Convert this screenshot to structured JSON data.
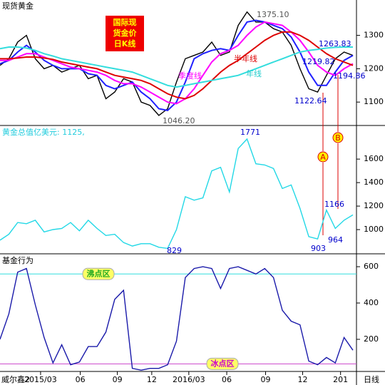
{
  "chart_data": [
    {
      "type": "line",
      "title": "现货黄金",
      "label_box": [
        "国际现",
        "货金价",
        "日K线"
      ],
      "annotations": [
        "1375.10",
        "1046.20",
        "1263.83",
        "1219.82",
        "1194.86",
        "1122.64",
        "半年线",
        "季度线",
        "年线"
      ],
      "markers": [
        "A",
        "B"
      ],
      "xlim": [
        0,
        40
      ],
      "ylim": [
        1032,
        1406
      ],
      "yticks": [
        1100,
        1200,
        1300
      ],
      "series": [
        {
          "color": "#000000",
          "values": [
            1210,
            1230,
            1280,
            1300,
            1230,
            1200,
            1210,
            1190,
            1200,
            1210,
            1170,
            1180,
            1110,
            1130,
            1170,
            1160,
            1100,
            1090,
            1060,
            1080,
            1160,
            1230,
            1240,
            1250,
            1280,
            1240,
            1250,
            1330,
            1370,
            1340,
            1340,
            1320,
            1310,
            1270,
            1200,
            1140,
            1130,
            1180,
            1230,
            1250,
            1240
          ]
        },
        {
          "color": "#2020ff",
          "values": [
            1215,
            1225,
            1250,
            1270,
            1250,
            1225,
            1210,
            1200,
            1200,
            1200,
            1185,
            1180,
            1150,
            1140,
            1150,
            1160,
            1130,
            1110,
            1080,
            1075,
            1100,
            1160,
            1230,
            1245,
            1255,
            1260,
            1255,
            1300,
            1340,
            1345,
            1340,
            1330,
            1320,
            1295,
            1250,
            1190,
            1150,
            1150,
            1190,
            1225,
            1240
          ]
        },
        {
          "color": "#ff00ff",
          "values": [
            1225,
            1225,
            1235,
            1245,
            1245,
            1235,
            1225,
            1215,
            1205,
            1200,
            1195,
            1190,
            1180,
            1165,
            1155,
            1155,
            1145,
            1130,
            1115,
            1100,
            1095,
            1110,
            1140,
            1180,
            1220,
            1245,
            1255,
            1270,
            1300,
            1325,
            1340,
            1335,
            1330,
            1310,
            1285,
            1250,
            1210,
            1190,
            1180,
            1200,
            1215
          ]
        },
        {
          "color": "#dd0000",
          "values": [
            1230,
            1230,
            1232,
            1235,
            1235,
            1232,
            1228,
            1220,
            1215,
            1210,
            1205,
            1200,
            1190,
            1180,
            1175,
            1170,
            1165,
            1155,
            1140,
            1125,
            1115,
            1110,
            1120,
            1140,
            1165,
            1190,
            1210,
            1225,
            1245,
            1265,
            1285,
            1300,
            1310,
            1310,
            1300,
            1285,
            1265,
            1245,
            1230,
            1220,
            1210
          ]
        },
        {
          "color": "#33dddd",
          "values": [
            1260,
            1265,
            1265,
            1262,
            1255,
            1245,
            1238,
            1230,
            1225,
            1220,
            1215,
            1210,
            1205,
            1200,
            1195,
            1190,
            1180,
            1170,
            1160,
            1150,
            1145,
            1150,
            1155,
            1160,
            1165,
            1170,
            1175,
            1180,
            1190,
            1200,
            1210,
            1220,
            1230,
            1240,
            1250,
            1255,
            1258,
            1262,
            1264,
            1265,
            1265
          ]
        }
      ]
    },
    {
      "type": "line",
      "title": "黄金总值亿美元: 1125,",
      "annotations": [
        "1771",
        "829",
        "1166",
        "903",
        "964"
      ],
      "xlim": [
        0,
        40
      ],
      "ylim": [
        800,
        1880
      ],
      "yticks": [
        1000,
        1200,
        1400,
        1600
      ],
      "series": [
        {
          "color": "#22d8e6",
          "values": [
            910,
            960,
            1060,
            1050,
            1080,
            980,
            1000,
            1010,
            1060,
            990,
            1080,
            1010,
            950,
            960,
            890,
            860,
            880,
            880,
            850,
            840,
            1000,
            1280,
            1250,
            1270,
            1500,
            1530,
            1320,
            1690,
            1771,
            1560,
            1550,
            1520,
            1350,
            1380,
            1180,
            940,
            920,
            1166,
            1010,
            1080,
            1125
          ]
        }
      ]
    },
    {
      "type": "line",
      "title": "基金行为",
      "xlim": [
        0,
        40
      ],
      "ylim": [
        27,
        667
      ],
      "yticks": [
        200,
        400,
        600
      ],
      "xticks": [
        {
          "value": 4.6,
          "label": "2015/03"
        },
        {
          "value": 9.1,
          "label": "06"
        },
        {
          "value": 13.3,
          "label": "09"
        },
        {
          "value": 17.2,
          "label": "12"
        },
        {
          "value": 21.4,
          "label": "2016/03"
        },
        {
          "value": 25.7,
          "label": "06"
        },
        {
          "value": 30.1,
          "label": "09"
        },
        {
          "value": 34.3,
          "label": "12"
        },
        {
          "value": 38.6,
          "label": "201"
        }
      ],
      "footer": [
        "威尔鑫2",
        "日线"
      ],
      "reference_lines": [
        {
          "label": "沸点区",
          "value": 560,
          "color": "#33dddd"
        },
        {
          "label": "冰点区",
          "value": 65,
          "color": "#cc44cc"
        }
      ],
      "series": [
        {
          "color": "#1a1aaa",
          "values": [
            200,
            340,
            570,
            590,
            390,
            210,
            70,
            170,
            60,
            75,
            160,
            160,
            240,
            420,
            470,
            40,
            30,
            40,
            40,
            60,
            190,
            540,
            590,
            600,
            590,
            480,
            590,
            600,
            580,
            560,
            590,
            540,
            360,
            300,
            280,
            80,
            60,
            100,
            70,
            210,
            140
          ]
        }
      ]
    }
  ]
}
